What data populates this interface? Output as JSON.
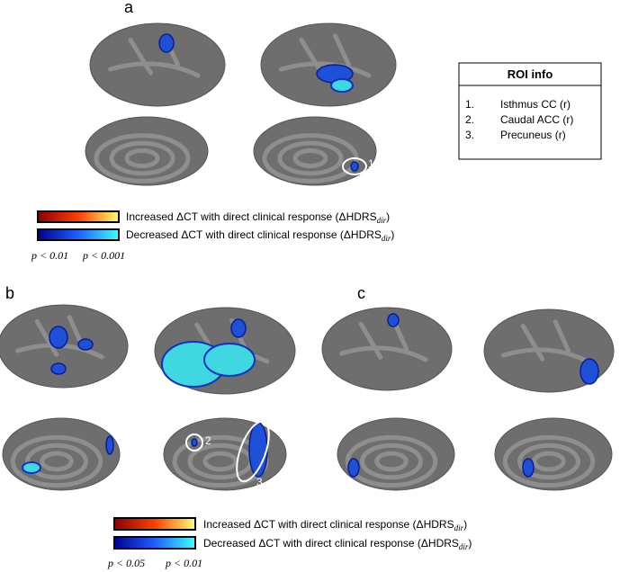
{
  "panels": [
    {
      "label": "a"
    },
    {
      "label": "b"
    },
    {
      "label": "c"
    }
  ],
  "roi_info": {
    "title": "ROI info",
    "items": [
      {
        "number": "1.",
        "name": "Isthmus CC (r)"
      },
      {
        "number": "2.",
        "name": "Caudal ACC (r)"
      },
      {
        "number": "3.",
        "name": "Precuneus (r)"
      }
    ]
  },
  "roi_markers": [
    "1",
    "2",
    "3"
  ],
  "legends": [
    {
      "increased": "Increased ΔCT with direct clinical response (ΔHDRS",
      "decreased": "Decreased ΔCT with direct clinical response (ΔHDRS",
      "subscript": "dir",
      "close": ")",
      "thresholds": [
        "p < 0.01",
        "p < 0.001"
      ]
    },
    {
      "increased": "Increased ΔCT with direct clinical response (ΔHDRS",
      "decreased": "Decreased ΔCT with direct clinical response (ΔHDRS",
      "subscript": "dir",
      "close": ")",
      "thresholds": [
        "p < 0.05",
        "p < 0.01"
      ]
    }
  ]
}
